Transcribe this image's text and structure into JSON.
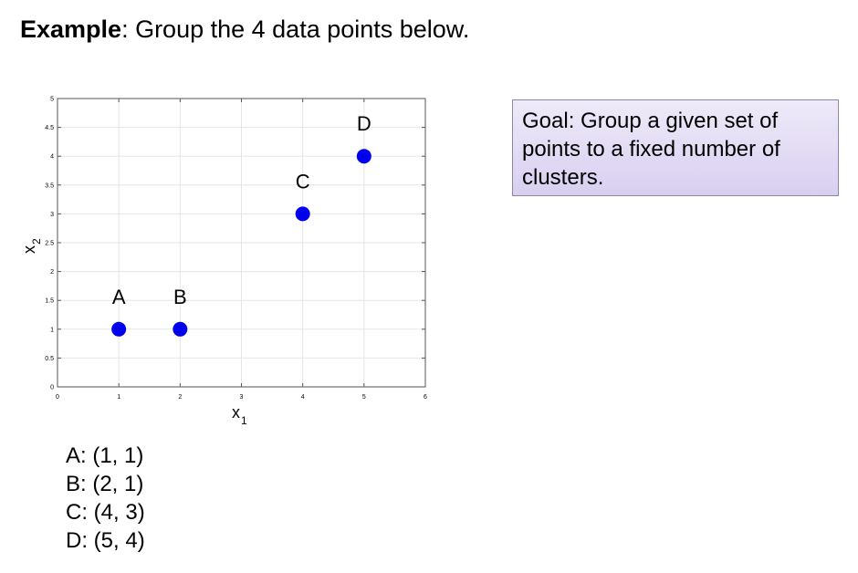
{
  "title": {
    "bold": "Example",
    "rest": ": Group the 4 data points below."
  },
  "goal": {
    "text": "Goal: Group a given set of points to a fixed number of clusters."
  },
  "coordinates": [
    "A: (1, 1)",
    "B: (2, 1)",
    "C: (4, 3)",
    "D: (5, 4)"
  ],
  "colors": {
    "point": "#0000ee",
    "goal_box_top": "#efeaf9",
    "goal_box_bottom": "#d8cff0"
  },
  "chart_data": {
    "type": "scatter",
    "title": "",
    "xlabel": "x1",
    "ylabel": "x2",
    "xlim": [
      0,
      6
    ],
    "ylim": [
      0,
      5
    ],
    "xticks": [
      "0",
      "1",
      "2",
      "3",
      "4",
      "5",
      "6"
    ],
    "yticks": [
      "0",
      "0.5",
      "1",
      "1.5",
      "2",
      "2.5",
      "3",
      "3.5",
      "4",
      "4.5",
      "5"
    ],
    "grid": true,
    "points": [
      {
        "label": "A",
        "x": 1,
        "y": 1
      },
      {
        "label": "B",
        "x": 2,
        "y": 1
      },
      {
        "label": "C",
        "x": 4,
        "y": 3
      },
      {
        "label": "D",
        "x": 5,
        "y": 4
      }
    ]
  }
}
